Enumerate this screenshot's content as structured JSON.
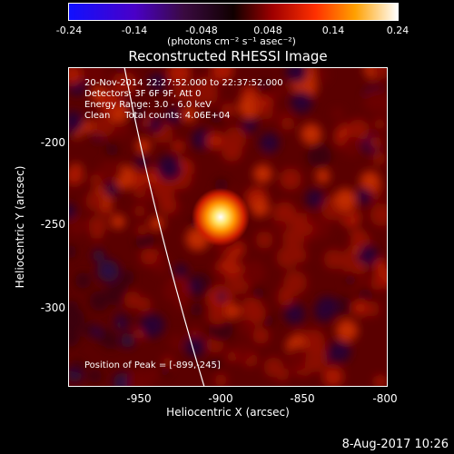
{
  "colorbar": {
    "tick_labels": [
      "-0.24",
      "-0.14",
      "-0.048",
      "0.048",
      "0.14",
      "0.24"
    ],
    "units": "(photons cm⁻² s⁻¹ asec⁻²)"
  },
  "chart_data": {
    "type": "heatmap",
    "title": "Reconstructed RHESSI Image",
    "xlabel": "Heliocentric X (arcsec)",
    "ylabel": "Heliocentric Y (arcsec)",
    "xlim": [
      -995,
      -800
    ],
    "ylim": [
      -350,
      -165
    ],
    "xtick_labels": [
      "-950",
      "-900",
      "-850",
      "-800"
    ],
    "ytick_labels": [
      "-200",
      "-250",
      "-300"
    ],
    "color_range": [
      -0.24,
      0.24
    ],
    "peak": {
      "x": -899,
      "y": -245
    },
    "annotations": [
      "20-Nov-2014 22:27:52.000 to 22:37:52.000",
      "Detectors: 3F 6F 9F, Att 0",
      "Energy Range: 3.0 - 6.0 keV",
      "Clean     Total counts: 4.06E+04"
    ],
    "peak_label": "Position of Peak = [-899,-245]"
  },
  "footer": {
    "date": "8-Aug-2017 10:26"
  }
}
